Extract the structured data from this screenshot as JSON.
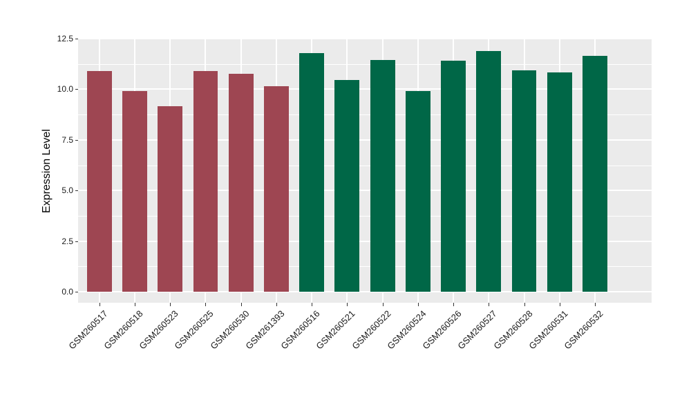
{
  "chart_data": {
    "type": "bar",
    "title": "",
    "xlabel": "",
    "ylabel": "Expression Level",
    "categories": [
      "GSM260517",
      "GSM260518",
      "GSM260523",
      "GSM260525",
      "GSM260530",
      "GSM261393",
      "GSM260516",
      "GSM260521",
      "GSM260522",
      "GSM260524",
      "GSM260526",
      "GSM260527",
      "GSM260528",
      "GSM260531",
      "GSM260532"
    ],
    "values": [
      10.9,
      9.9,
      9.15,
      10.9,
      10.75,
      10.15,
      11.8,
      10.45,
      11.45,
      9.9,
      11.4,
      11.9,
      10.95,
      10.85,
      11.65
    ],
    "bar_colors": [
      "#9E4652",
      "#9E4652",
      "#9E4652",
      "#9E4652",
      "#9E4652",
      "#9E4652",
      "#006747",
      "#006747",
      "#006747",
      "#006747",
      "#006747",
      "#006747",
      "#006747",
      "#006747",
      "#006747"
    ],
    "yticks": [
      0,
      2.5,
      5,
      7.5,
      10,
      12.5
    ],
    "ytick_labels": [
      "0.0",
      "2.5",
      "5.0",
      "7.5",
      "10.0",
      "12.5"
    ],
    "ylim": [
      0,
      12.5
    ],
    "grid": true,
    "legend_position": "none",
    "panel_background": "#EBEBEB",
    "grid_color": "#FFFFFF",
    "tick_color": "#333333",
    "axis_text_color": "#1a1a1a"
  }
}
